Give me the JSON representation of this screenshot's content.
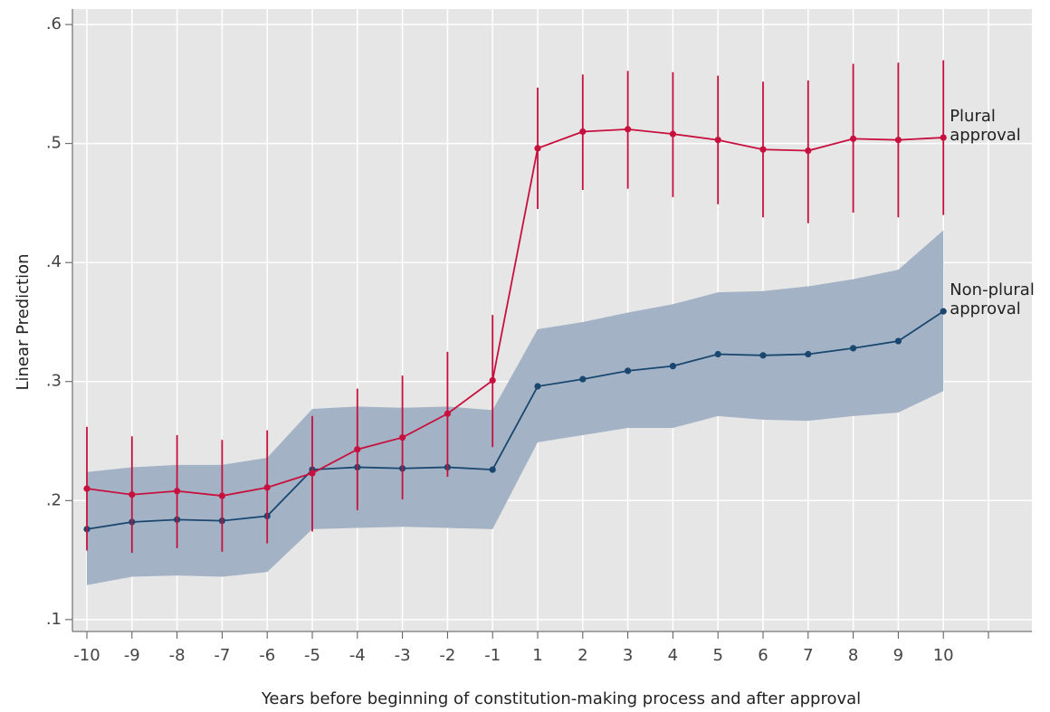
{
  "chart_data": {
    "type": "line",
    "y_label": "Linear Prediction",
    "x_label": "Years before beginning of constitution-making process and after approval",
    "categories": [
      "-10",
      "-9",
      "-8",
      "-7",
      "-6",
      "-5",
      "-4",
      "-3",
      "-2",
      "-1",
      "1",
      "2",
      "3",
      "4",
      "5",
      "6",
      "7",
      "8",
      "9",
      "10",
      null
    ],
    "ylim": [
      0.09,
      0.613
    ],
    "yticks": [
      {
        "value": 0.1,
        "label": ".1"
      },
      {
        "value": 0.2,
        "label": ".2"
      },
      {
        "value": 0.3,
        "label": ".3"
      },
      {
        "value": 0.4,
        "label": ".4"
      },
      {
        "value": 0.5,
        "label": ".5"
      },
      {
        "value": 0.6,
        "label": ".6"
      }
    ],
    "grid": true,
    "background": "#e6e6e6",
    "series": [
      {
        "name": "Non-plural approval",
        "color": "#1a476f",
        "ci_style": "band",
        "band_color": "#a3b3c5",
        "values": [
          0.176,
          0.182,
          0.184,
          0.183,
          0.187,
          0.226,
          0.228,
          0.227,
          0.228,
          0.226,
          0.296,
          0.302,
          0.309,
          0.313,
          0.323,
          0.322,
          0.323,
          0.328,
          0.334,
          0.359,
          null
        ],
        "lower": [
          0.129,
          0.136,
          0.137,
          0.136,
          0.14,
          0.176,
          0.177,
          0.178,
          0.177,
          0.176,
          0.249,
          0.255,
          0.261,
          0.261,
          0.271,
          0.268,
          0.267,
          0.271,
          0.274,
          0.292,
          null
        ],
        "upper": [
          0.224,
          0.228,
          0.23,
          0.23,
          0.236,
          0.277,
          0.279,
          0.278,
          0.279,
          0.276,
          0.344,
          0.35,
          0.358,
          0.365,
          0.375,
          0.376,
          0.38,
          0.386,
          0.394,
          0.427,
          null
        ]
      },
      {
        "name": "Plural approval",
        "color": "#c8103e",
        "ci_style": "errorbars",
        "values": [
          0.21,
          0.205,
          0.208,
          0.204,
          0.211,
          0.223,
          0.243,
          0.253,
          0.273,
          0.301,
          0.496,
          0.51,
          0.512,
          0.508,
          0.503,
          0.495,
          0.494,
          0.504,
          0.503,
          0.505,
          null
        ],
        "lower": [
          0.158,
          0.156,
          0.16,
          0.157,
          0.164,
          0.174,
          0.192,
          0.201,
          0.22,
          0.245,
          0.445,
          0.461,
          0.462,
          0.455,
          0.449,
          0.438,
          0.433,
          0.442,
          0.438,
          0.44,
          null
        ],
        "upper": [
          0.262,
          0.254,
          0.255,
          0.251,
          0.259,
          0.271,
          0.294,
          0.305,
          0.325,
          0.356,
          0.547,
          0.558,
          0.561,
          0.56,
          0.557,
          0.552,
          0.553,
          0.567,
          0.568,
          0.57,
          null
        ]
      }
    ]
  }
}
